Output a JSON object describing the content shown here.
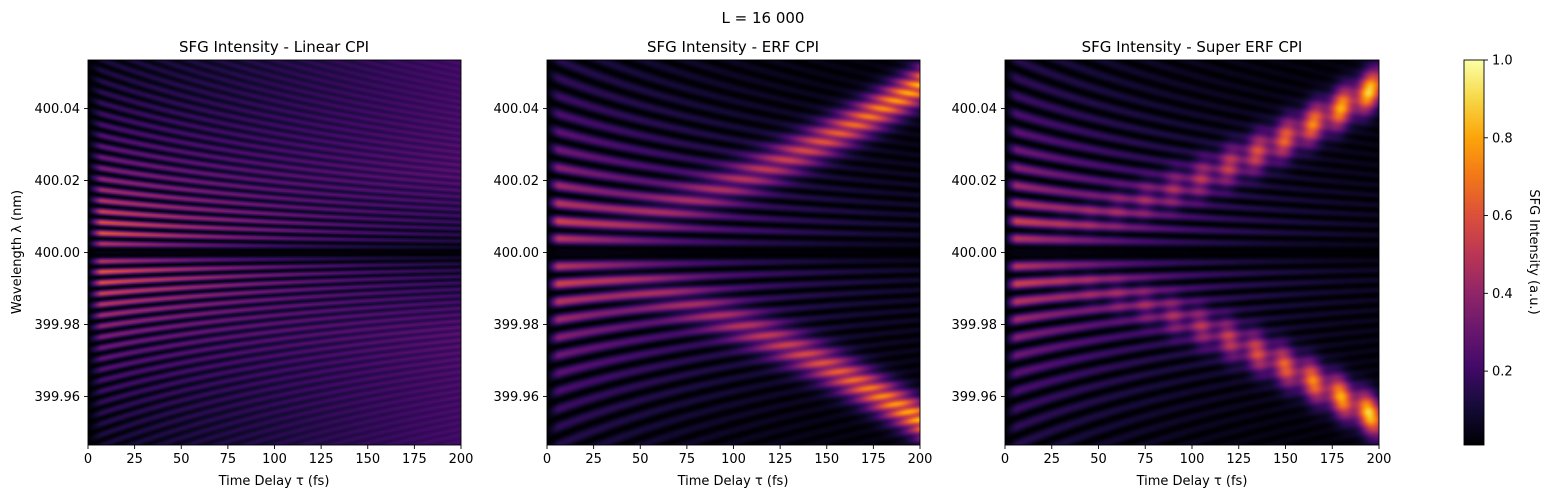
{
  "figure": {
    "suptitle": "L = 16 000",
    "colormap": "inferno"
  },
  "chart_data": [
    {
      "type": "heatmap",
      "title": "SFG Intensity - Linear CPI",
      "xlabel": "Time Delay τ (fs)",
      "ylabel": "Wavelength λ (nm)",
      "xlim": [
        0,
        200
      ],
      "ylim": [
        399.9465,
        400.0535
      ],
      "xticks": [
        "0",
        "25",
        "50",
        "75",
        "100",
        "125",
        "150",
        "175",
        "200"
      ],
      "yticks": [
        "399.96",
        "399.98",
        "400.00",
        "400.02",
        "400.04"
      ],
      "ytick_values": [
        399.96,
        399.98,
        400.0,
        400.02,
        400.04
      ],
      "pattern": "linear",
      "fringe_spacing_nm": 0.0031
    },
    {
      "type": "heatmap",
      "title": "SFG Intensity - ERF CPI",
      "xlabel": "Time Delay τ (fs)",
      "ylabel": "",
      "xlim": [
        0,
        200
      ],
      "ylim": [
        399.9465,
        400.0535
      ],
      "xticks": [
        "0",
        "25",
        "50",
        "75",
        "100",
        "125",
        "150",
        "175",
        "200"
      ],
      "yticks": [
        "399.96",
        "399.98",
        "400.00",
        "400.02",
        "400.04"
      ],
      "ytick_values": [
        399.96,
        399.98,
        400.0,
        400.02,
        400.04
      ],
      "pattern": "erf",
      "fringe_spacing_nm": 0.0051
    },
    {
      "type": "heatmap",
      "title": "SFG Intensity - Super ERF CPI",
      "xlabel": "Time Delay τ (fs)",
      "ylabel": "",
      "xlim": [
        0,
        200
      ],
      "ylim": [
        399.9465,
        400.0535
      ],
      "xticks": [
        "0",
        "25",
        "50",
        "75",
        "100",
        "125",
        "150",
        "175",
        "200"
      ],
      "yticks": [
        "399.96",
        "399.98",
        "400.00",
        "400.02",
        "400.04"
      ],
      "ytick_values": [
        399.96,
        399.98,
        400.0,
        400.02,
        400.04
      ],
      "pattern": "super-erf",
      "fringe_spacing_nm": 0.0051
    }
  ],
  "colorbar": {
    "label": "SFG Intensity (a.u.)",
    "range": [
      0.01,
      1.0
    ],
    "ticks": [
      "0.2",
      "0.4",
      "0.6",
      "0.8",
      "1.0"
    ],
    "tick_values": [
      0.2,
      0.4,
      0.6,
      0.8,
      1.0
    ]
  }
}
